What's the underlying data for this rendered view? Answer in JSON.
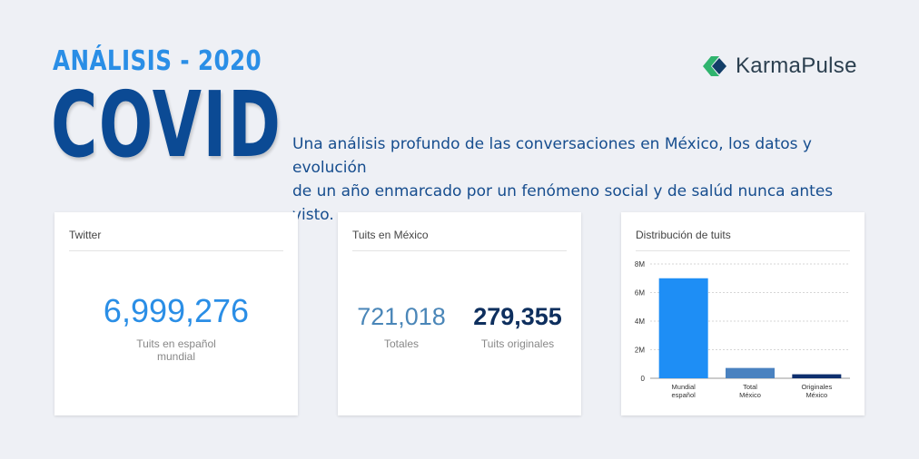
{
  "header": {
    "kicker": "ANÁLISIS - 2020",
    "title": "COVID",
    "description_line1": "Una análisis profundo de las conversaciones en México, los datos y evolución",
    "description_line2": "de un año enmarcado por un fenómeno social y de salúd nunca antes visto."
  },
  "brand": {
    "part1": "Karma",
    "part2": "Pulse",
    "colors": {
      "green": "#2fb46e",
      "navy": "#123e68"
    }
  },
  "cards": {
    "twitter": {
      "title": "Twitter",
      "value": "6,999,276",
      "caption_line1": "Tuits en español",
      "caption_line2": "mundial"
    },
    "mexico": {
      "title": "Tuits en México",
      "total_value": "721,018",
      "total_label": "Totales",
      "original_value": "279,355",
      "original_label": "Tuits originales"
    },
    "distribution": {
      "title": "Distribución de tuits"
    }
  },
  "chart_data": {
    "type": "bar",
    "categories": [
      [
        "Mundial",
        "español"
      ],
      [
        "Total",
        "México"
      ],
      [
        "Originales",
        "México"
      ]
    ],
    "values": [
      6999276,
      721018,
      279355
    ],
    "colors": [
      "#1e8ef5",
      "#4a82c0",
      "#0e2f6e"
    ],
    "yticks": [
      0,
      2000000,
      4000000,
      6000000,
      8000000
    ],
    "ytick_labels": [
      "0",
      "2M",
      "4M",
      "6M",
      "8M"
    ],
    "ylim": [
      0,
      8000000
    ],
    "grid": true
  },
  "colors": {
    "accent": "#2a8ee6",
    "title": "#0b4a94",
    "description": "#164d8e",
    "background": "#eef0f5"
  }
}
